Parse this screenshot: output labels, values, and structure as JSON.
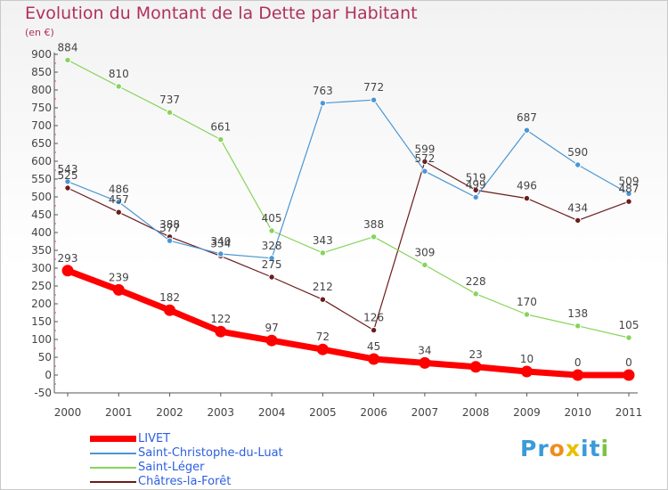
{
  "title": "Evolution du Montant de la Dette par Habitant",
  "unit": "(en €)",
  "brand": "Proxiti",
  "chart_data": {
    "type": "line",
    "title": "Evolution du Montant de la Dette par Habitant",
    "ylabel": "(en €)",
    "xlabel": "",
    "x": [
      "2000",
      "2001",
      "2002",
      "2003",
      "2004",
      "2005",
      "2006",
      "2007",
      "2008",
      "2009",
      "2010",
      "2011"
    ],
    "ylim": [
      -50,
      900
    ],
    "yticks": [
      -50,
      0,
      50,
      100,
      150,
      200,
      250,
      300,
      350,
      400,
      450,
      500,
      550,
      600,
      650,
      700,
      750,
      800,
      850,
      900
    ],
    "grid": false,
    "legend_position": "bottom-left",
    "series": [
      {
        "name": "LIVET",
        "color": "#ff0000",
        "values": [
          293,
          239,
          182,
          122,
          97,
          72,
          45,
          34,
          23,
          10,
          0,
          0
        ]
      },
      {
        "name": "Saint-Christophe-du-Luat",
        "color": "#4b96d3",
        "values": [
          543,
          486,
          377,
          340,
          328,
          763,
          772,
          572,
          499,
          687,
          590,
          509
        ]
      },
      {
        "name": "Saint-Léger",
        "color": "#86d45a",
        "values": [
          884,
          810,
          737,
          661,
          405,
          343,
          388,
          309,
          228,
          170,
          138,
          105
        ]
      },
      {
        "name": "Châtres-la-Forêt",
        "color": "#6b1c1c",
        "values": [
          525,
          457,
          388,
          334,
          275,
          212,
          126,
          599,
          519,
          496,
          434,
          487
        ]
      }
    ]
  }
}
